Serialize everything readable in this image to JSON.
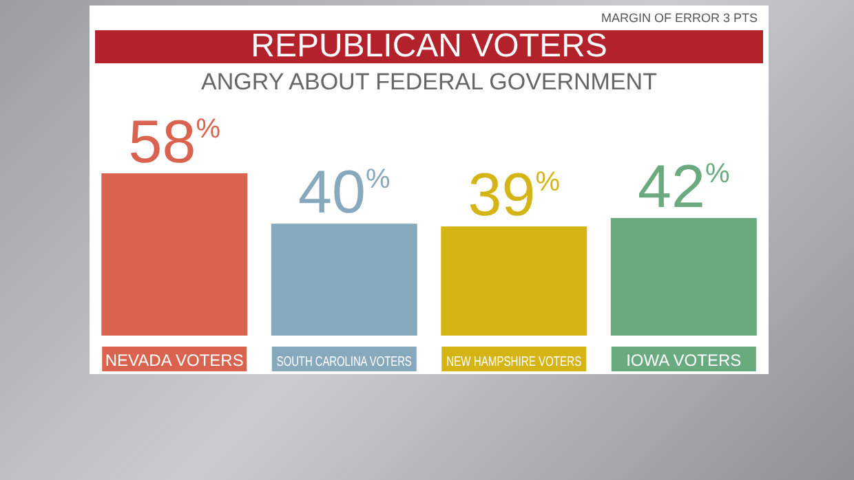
{
  "chart_data": {
    "type": "bar",
    "title": "REPUBLICAN VOTERS",
    "subtitle": "ANGRY ABOUT FEDERAL GOVERNMENT",
    "annotations": [
      "MARGIN OF ERROR 3 PTS"
    ],
    "categories": [
      "NEVADA VOTERS",
      "SOUTH CAROLINA VOTERS",
      "NEW HAMPSHIRE VOTERS",
      "IOWA VOTERS"
    ],
    "values": [
      58,
      40,
      39,
      42
    ],
    "value_labels": [
      "58$^{%}$",
      "40$^{%}$",
      "39$^{%}$",
      "42$^{%}$"
    ],
    "colors": [
      "#d9634f",
      "#87a9bd",
      "#d4b515",
      "#6aaa7f"
    ],
    "legend": false,
    "grid": false
  }
}
